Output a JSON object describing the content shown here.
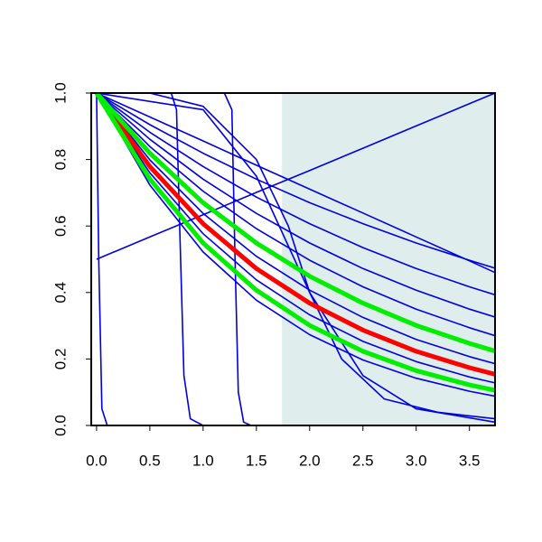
{
  "chart_data": {
    "type": "line",
    "xlim": [
      -0.05,
      3.74
    ],
    "ylim": [
      0,
      1
    ],
    "xticks": [
      {
        "value": 0,
        "label": "0.0"
      },
      {
        "value": 0.5,
        "label": "0.5"
      },
      {
        "value": 1,
        "label": "1.0"
      },
      {
        "value": 1.5,
        "label": "1.5"
      },
      {
        "value": 2,
        "label": "2.0"
      },
      {
        "value": 2.5,
        "label": "2.5"
      },
      {
        "value": 3,
        "label": "3.0"
      },
      {
        "value": 3.5,
        "label": "3.5"
      }
    ],
    "yticks": [
      {
        "value": 0,
        "label": "0.0"
      },
      {
        "value": 0.2,
        "label": "0.2"
      },
      {
        "value": 0.4,
        "label": "0.4"
      },
      {
        "value": 0.6,
        "label": "0.6"
      },
      {
        "value": 0.8,
        "label": "0.8"
      },
      {
        "value": 1,
        "label": "1.0"
      }
    ],
    "shaded_xrange": [
      1.74,
      3.74
    ],
    "shade_color": "#e0eded",
    "x": [
      0,
      0.5,
      1,
      1.5,
      2,
      2.5,
      3,
      3.5,
      3.74
    ],
    "series": [
      {
        "color": "#0000dd",
        "values": [
          1,
          0.905,
          0.819,
          0.741,
          0.67,
          0.607,
          0.549,
          0.497,
          0.473
        ]
      },
      {
        "color": "#0000dd",
        "values": [
          1,
          0.882,
          0.779,
          0.687,
          0.607,
          0.535,
          0.472,
          0.417,
          0.393
        ]
      },
      {
        "color": "#0000dd",
        "values": [
          1,
          0.861,
          0.741,
          0.638,
          0.549,
          0.472,
          0.407,
          0.35,
          0.326
        ]
      },
      {
        "color": "#0000dd",
        "values": [
          1,
          0.839,
          0.705,
          0.592,
          0.497,
          0.417,
          0.35,
          0.294,
          0.27
        ]
      },
      {
        "color": "#0000dd",
        "values": [
          1,
          0.799,
          0.638,
          0.509,
          0.407,
          0.325,
          0.259,
          0.207,
          0.186
        ]
      },
      {
        "color": "#0000dd",
        "values": [
          1,
          0.76,
          0.577,
          0.438,
          0.333,
          0.253,
          0.192,
          0.146,
          0.128
        ]
      },
      {
        "color": "#0000dd",
        "values": [
          1,
          0.723,
          0.522,
          0.377,
          0.273,
          0.197,
          0.142,
          0.103,
          0.088
        ]
      },
      {
        "color": "#0000dd",
        "values": [
          0.5,
          0.567,
          0.634,
          0.701,
          0.767,
          0.834,
          0.901,
          0.968,
          1
        ]
      },
      {
        "color": "#0000dd",
        "values": [
          1,
          0.928,
          0.856,
          0.783,
          0.711,
          0.639,
          0.567,
          0.495,
          0.46
        ]
      },
      {
        "color": "#0000dd",
        "x": [
          0,
          0.02,
          0.05,
          0.1,
          3.74
        ],
        "values": [
          1,
          0.5,
          0.05,
          0,
          0
        ]
      },
      {
        "color": "#0000dd",
        "x": [
          0,
          0.7,
          0.75,
          0.78,
          0.82,
          0.88,
          1,
          3.74
        ],
        "values": [
          1,
          1,
          0.95,
          0.6,
          0.15,
          0.02,
          0,
          0
        ]
      },
      {
        "color": "#0000dd",
        "x": [
          0,
          1.2,
          1.27,
          1.3,
          1.33,
          1.38,
          1.45,
          3.74
        ],
        "values": [
          1,
          1,
          0.95,
          0.5,
          0.1,
          0.01,
          0,
          0
        ]
      },
      {
        "color": "#0000dd",
        "x": [
          0,
          0.5,
          1,
          1.5,
          1.8,
          2,
          2.3,
          2.7,
          3.2,
          3.74
        ],
        "values": [
          1,
          1,
          0.96,
          0.8,
          0.6,
          0.4,
          0.2,
          0.08,
          0.04,
          0.02
        ]
      },
      {
        "color": "#0000dd",
        "x": [
          0,
          1,
          1.5,
          2,
          2.5,
          3,
          3.74
        ],
        "values": [
          1,
          0.95,
          0.75,
          0.4,
          0.15,
          0.05,
          0.01
        ]
      },
      {
        "color": "#ff0000",
        "width": 5,
        "values": [
          1,
          0.779,
          0.607,
          0.472,
          0.368,
          0.287,
          0.223,
          0.174,
          0.154
        ]
      },
      {
        "color": "#00ee00",
        "width": 5,
        "values": [
          1,
          0.819,
          0.67,
          0.549,
          0.449,
          0.368,
          0.301,
          0.247,
          0.224
        ]
      },
      {
        "color": "#00ee00",
        "width": 5,
        "values": [
          1,
          0.741,
          0.549,
          0.407,
          0.301,
          0.223,
          0.165,
          0.122,
          0.106
        ]
      }
    ]
  }
}
